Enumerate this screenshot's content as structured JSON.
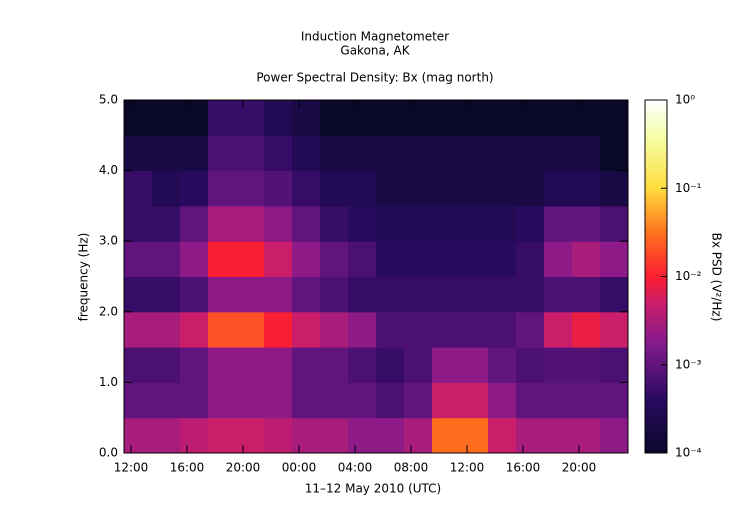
{
  "chart_data": {
    "type": "heatmap",
    "title": "Induction Magnetometer",
    "subtitle": "Gakona, AK",
    "plot_title": "Power Spectral Density: Bx (mag north)",
    "xlabel": "11–12 May 2010 (UTC)",
    "ylabel": "frequency (Hz)",
    "colorbar_label": "Bx PSD (V²/Hz)",
    "xlim": [
      -0.5,
      35.5
    ],
    "xticks": [
      {
        "value": 0,
        "label": "12:00"
      },
      {
        "value": 4,
        "label": "16:00"
      },
      {
        "value": 8,
        "label": "20:00"
      },
      {
        "value": 12,
        "label": "00:00"
      },
      {
        "value": 16,
        "label": "04:00"
      },
      {
        "value": 20,
        "label": "08:00"
      },
      {
        "value": 24,
        "label": "12:00"
      },
      {
        "value": 28,
        "label": "16:00"
      },
      {
        "value": 32,
        "label": "20:00"
      }
    ],
    "ylim": [
      0,
      5
    ],
    "yticks": [
      {
        "value": 0,
        "label": "0.0"
      },
      {
        "value": 1,
        "label": "1.0"
      },
      {
        "value": 2,
        "label": "2.0"
      },
      {
        "value": 3,
        "label": "3.0"
      },
      {
        "value": 4,
        "label": "4.0"
      },
      {
        "value": 5,
        "label": "5.0"
      }
    ],
    "xbins": [
      -0.5,
      1.5,
      3.5,
      5.5,
      7.5,
      9.5,
      11.5,
      13.5,
      15.5,
      17.5,
      19.5,
      21.5,
      23.5,
      25.5,
      27.5,
      29.5,
      31.5,
      33.5,
      35.5
    ],
    "ybins": [
      0,
      0.5,
      1,
      1.5,
      2,
      2.5,
      3,
      3.5,
      4,
      4.5,
      5
    ],
    "zlim": [
      0.0001,
      1
    ],
    "zscale": "log",
    "zticks": [
      {
        "value": 0.0001,
        "label": "10⁻⁴"
      },
      {
        "value": 0.001,
        "label": "10⁻³"
      },
      {
        "value": 0.01,
        "label": "10⁻²"
      },
      {
        "value": 0.1,
        "label": "10⁻¹"
      },
      {
        "value": 1,
        "label": "10⁰"
      }
    ],
    "z": [
      [
        0.003,
        0.003,
        0.004,
        0.005,
        0.005,
        0.004,
        0.003,
        0.003,
        0.002,
        0.002,
        0.003,
        0.03,
        0.03,
        0.005,
        0.003,
        0.003,
        0.003,
        0.002
      ],
      [
        0.001,
        0.001,
        0.001,
        0.002,
        0.002,
        0.002,
        0.001,
        0.001,
        0.001,
        0.0007,
        0.001,
        0.005,
        0.005,
        0.002,
        0.001,
        0.001,
        0.001,
        0.001
      ],
      [
        0.0007,
        0.0007,
        0.001,
        0.002,
        0.002,
        0.002,
        0.001,
        0.001,
        0.0007,
        0.0005,
        0.0007,
        0.002,
        0.002,
        0.001,
        0.0007,
        0.0008,
        0.0008,
        0.0007
      ],
      [
        0.003,
        0.003,
        0.005,
        0.02,
        0.02,
        0.01,
        0.005,
        0.003,
        0.002,
        0.0007,
        0.0007,
        0.0007,
        0.0007,
        0.0007,
        0.001,
        0.005,
        0.008,
        0.005
      ],
      [
        0.0005,
        0.0005,
        0.0007,
        0.002,
        0.002,
        0.002,
        0.001,
        0.0007,
        0.0005,
        0.0005,
        0.0005,
        0.0005,
        0.0005,
        0.0005,
        0.0005,
        0.0007,
        0.0007,
        0.0005
      ],
      [
        0.001,
        0.001,
        0.002,
        0.01,
        0.01,
        0.005,
        0.002,
        0.001,
        0.0007,
        0.0004,
        0.0004,
        0.0004,
        0.0004,
        0.0004,
        0.0005,
        0.002,
        0.003,
        0.002
      ],
      [
        0.0005,
        0.0005,
        0.001,
        0.003,
        0.003,
        0.002,
        0.001,
        0.0005,
        0.0004,
        0.0003,
        0.0003,
        0.0003,
        0.0003,
        0.0003,
        0.0004,
        0.001,
        0.001,
        0.0007
      ],
      [
        0.0005,
        0.0003,
        0.0004,
        0.001,
        0.001,
        0.0008,
        0.0005,
        0.0003,
        0.0003,
        0.0002,
        0.0002,
        0.0002,
        0.0002,
        0.0002,
        0.0002,
        0.0003,
        0.0003,
        0.0002
      ],
      [
        0.0002,
        0.0002,
        0.0002,
        0.0007,
        0.0007,
        0.0005,
        0.0003,
        0.0002,
        0.0002,
        0.0002,
        0.0002,
        0.0002,
        0.0002,
        0.0002,
        0.0002,
        0.0002,
        0.0002,
        0.0001
      ],
      [
        0.0001,
        0.0001,
        0.0001,
        0.0005,
        0.0005,
        0.0003,
        0.0002,
        0.0001,
        0.0001,
        0.0001,
        0.0001,
        0.0001,
        0.0001,
        0.0001,
        0.0001,
        0.0001,
        0.0001,
        0.0001
      ]
    ]
  }
}
